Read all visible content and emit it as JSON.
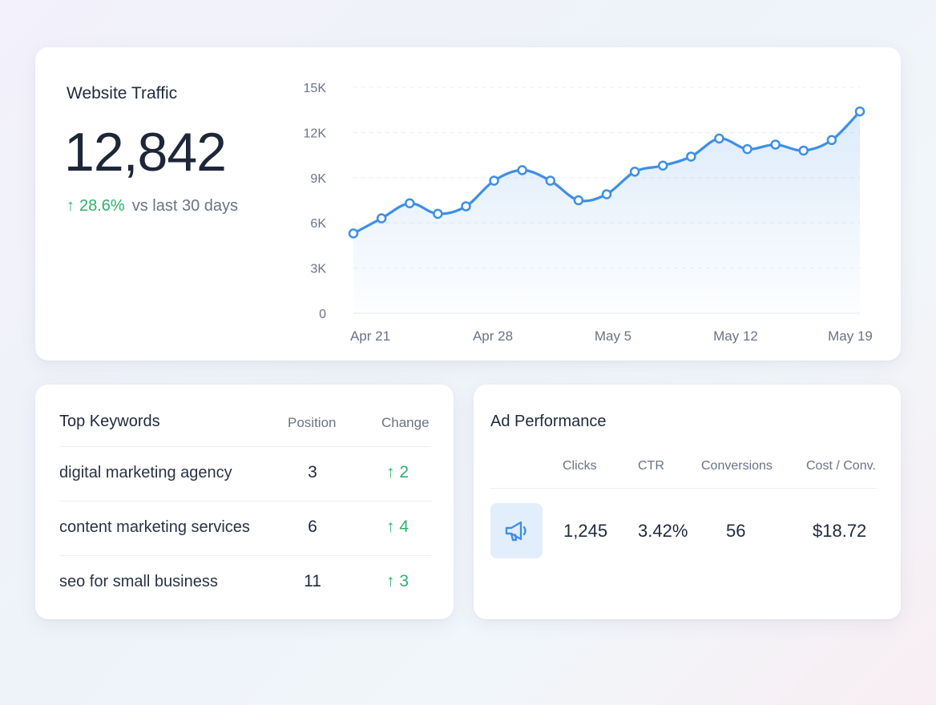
{
  "traffic": {
    "title": "Website Traffic",
    "value": "12,842",
    "change_arrow": "↑",
    "change_pct": "28.6%",
    "change_label": "vs last 30 days"
  },
  "chart_data": {
    "type": "area",
    "title": "",
    "xlabel": "",
    "ylabel": "",
    "ylim": [
      0,
      15000
    ],
    "y_ticks": [
      "0",
      "3K",
      "6K",
      "9K",
      "12K",
      "15K"
    ],
    "x_ticks": [
      "Apr 21",
      "Apr 28",
      "May 5",
      "May 12",
      "May 19"
    ],
    "grid": true,
    "series": [
      {
        "values": [
          5300,
          6300,
          7300,
          6600,
          7100,
          8800,
          9500,
          8800,
          7500,
          7900,
          9400,
          9800,
          10400,
          11600,
          10900,
          11200,
          10800,
          11500,
          13400
        ]
      }
    ],
    "color": "#3d8fe6"
  },
  "keywords": {
    "title": "Top Keywords",
    "col_position": "Position",
    "col_change": "Change",
    "rows": [
      {
        "keyword": "digital marketing agency",
        "position": "3",
        "change": "↑ 2"
      },
      {
        "keyword": "content marketing services",
        "position": "6",
        "change": "↑ 4"
      },
      {
        "keyword": "seo for small business",
        "position": "11",
        "change": "↑ 3"
      }
    ]
  },
  "ads": {
    "title": "Ad Performance",
    "icon": "megaphone-icon",
    "headers": {
      "clicks": "Clicks",
      "ctr": "CTR",
      "conversions": "Conversions",
      "cost": "Cost / Conv."
    },
    "values": {
      "clicks": "1,245",
      "ctr": "3.42%",
      "conversions": "56",
      "cost": "$18.72"
    }
  }
}
